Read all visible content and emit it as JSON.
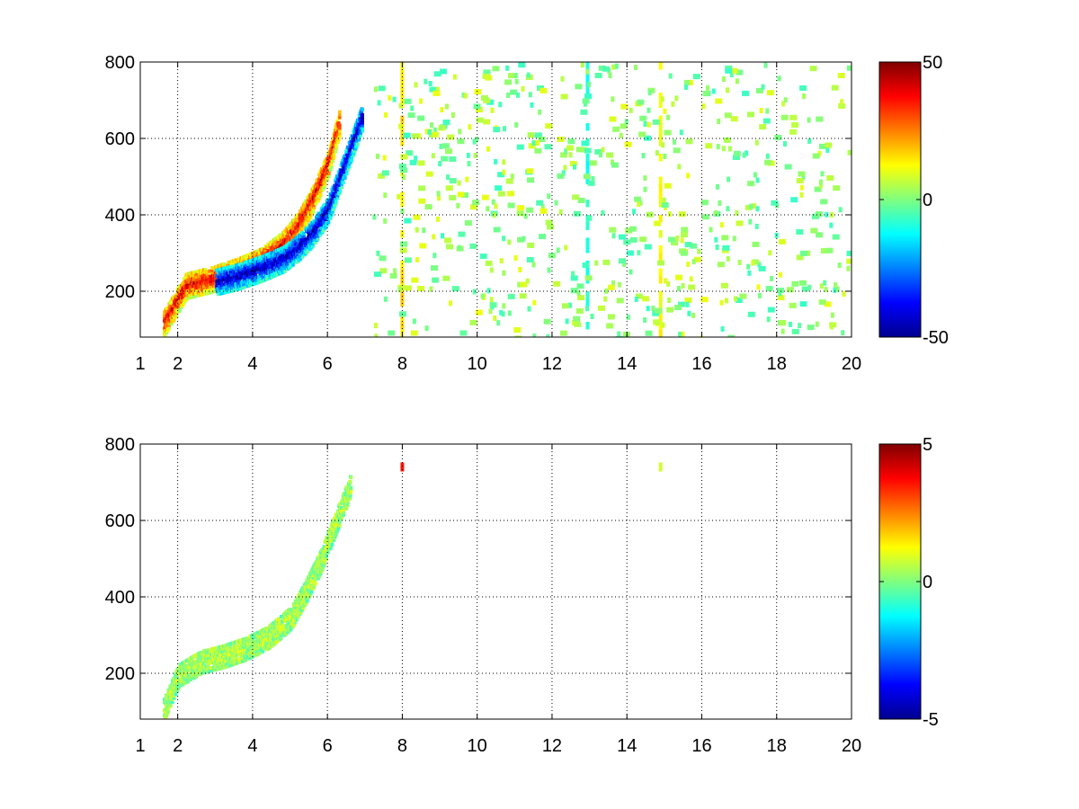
{
  "chart_data": [
    {
      "type": "heatmap",
      "title": "",
      "xlabel": "",
      "ylabel": "",
      "xlim": [
        1,
        20
      ],
      "ylim": [
        80,
        800
      ],
      "x_ticks": [
        1,
        2,
        4,
        6,
        8,
        10,
        12,
        14,
        16,
        18,
        20
      ],
      "y_ticks": [
        200,
        400,
        600,
        800
      ],
      "grid": true,
      "colormap": "jet",
      "colorbar": {
        "limits": [
          -50,
          50
        ],
        "ticks": [
          50,
          0,
          -50
        ]
      },
      "features": [
        {
          "shape": "curved_band",
          "x": [
            1.6,
            2.2,
            3.0,
            3.6,
            4.2,
            4.8,
            5.2,
            5.6,
            6.0,
            6.3
          ],
          "y": [
            120,
            220,
            240,
            260,
            285,
            330,
            380,
            450,
            540,
            650
          ],
          "value": 40
        },
        {
          "shape": "curved_band",
          "x": [
            3.0,
            3.6,
            4.2,
            4.8,
            5.2,
            5.6,
            6.0,
            6.3,
            6.6,
            6.9
          ],
          "y": [
            230,
            245,
            265,
            290,
            320,
            360,
            420,
            500,
            580,
            660
          ],
          "value": -45
        },
        {
          "shape": "vertical_stripe",
          "x": 8.0,
          "y": [
            80,
            800
          ],
          "value": 15
        },
        {
          "shape": "vertical_stripe",
          "x": 12.95,
          "y": [
            80,
            800
          ],
          "value": -10
        },
        {
          "shape": "vertical_stripe",
          "x": 14.9,
          "y": [
            80,
            800
          ],
          "value": 12
        }
      ]
    },
    {
      "type": "heatmap",
      "title": "",
      "xlabel": "",
      "ylabel": "",
      "xlim": [
        1,
        20
      ],
      "ylim": [
        80,
        800
      ],
      "x_ticks": [
        1,
        2,
        4,
        6,
        8,
        10,
        12,
        14,
        16,
        18,
        20
      ],
      "y_ticks": [
        200,
        400,
        600,
        800
      ],
      "grid": true,
      "colormap": "jet",
      "colorbar": {
        "limits": [
          -5,
          5
        ],
        "ticks": [
          5,
          0,
          -5
        ]
      },
      "features": [
        {
          "shape": "curved_band",
          "x": [
            1.6,
            2.0,
            2.6,
            3.2,
            3.8,
            4.4,
            5.0,
            5.4,
            5.8,
            6.2,
            6.6
          ],
          "y": [
            110,
            200,
            235,
            250,
            270,
            300,
            350,
            420,
            500,
            600,
            700
          ],
          "value": 0.5
        },
        {
          "shape": "spot",
          "x": 8.0,
          "y": 740,
          "value": 3.5
        },
        {
          "shape": "spot",
          "x": 14.9,
          "y": 740,
          "value": 0.8
        }
      ]
    }
  ]
}
